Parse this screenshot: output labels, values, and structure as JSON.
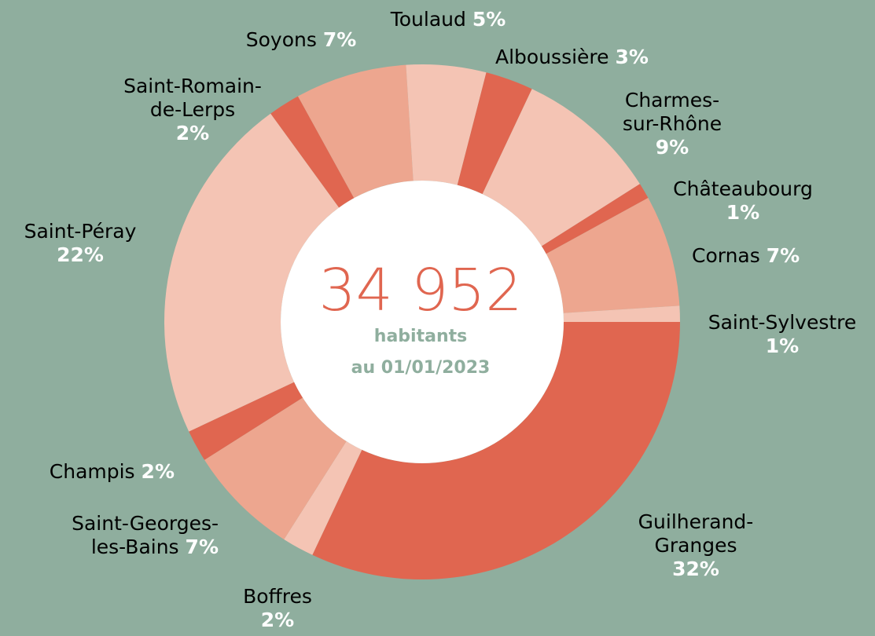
{
  "chart_data": {
    "type": "pie",
    "categories": [
      "Guilherand-\nGranges",
      "Boffres",
      "Saint-Georges-\nles-Bains",
      "Champis",
      "Saint-Péray",
      "Saint-Romain-\nde-Lerps",
      "Soyons",
      "Toulaud",
      "Alboussière",
      "Charmes-\nsur-Rhône",
      "Châteaubourg",
      "Cornas",
      "Saint-Sylvestre"
    ],
    "values": [
      32,
      2,
      7,
      2,
      22,
      2,
      7,
      5,
      3,
      9,
      1,
      7,
      1
    ],
    "value_labels": [
      "32%",
      "2%",
      "7%",
      "2%",
      "22%",
      "2%",
      "7%",
      "5%",
      "3%",
      "9%",
      "1%",
      "7%",
      "1%"
    ],
    "colors": [
      "#e06650",
      "#f4c4b4",
      "#eda68f",
      "#e06650",
      "#f4c4b4",
      "#e06650",
      "#eda68f",
      "#f4c4b4",
      "#e06650",
      "#f4c4b4",
      "#e06650",
      "#eda68f",
      "#f4c4b4"
    ],
    "total_label": "34 952",
    "captions": [
      "habitants",
      "au 01/01/2023"
    ]
  }
}
